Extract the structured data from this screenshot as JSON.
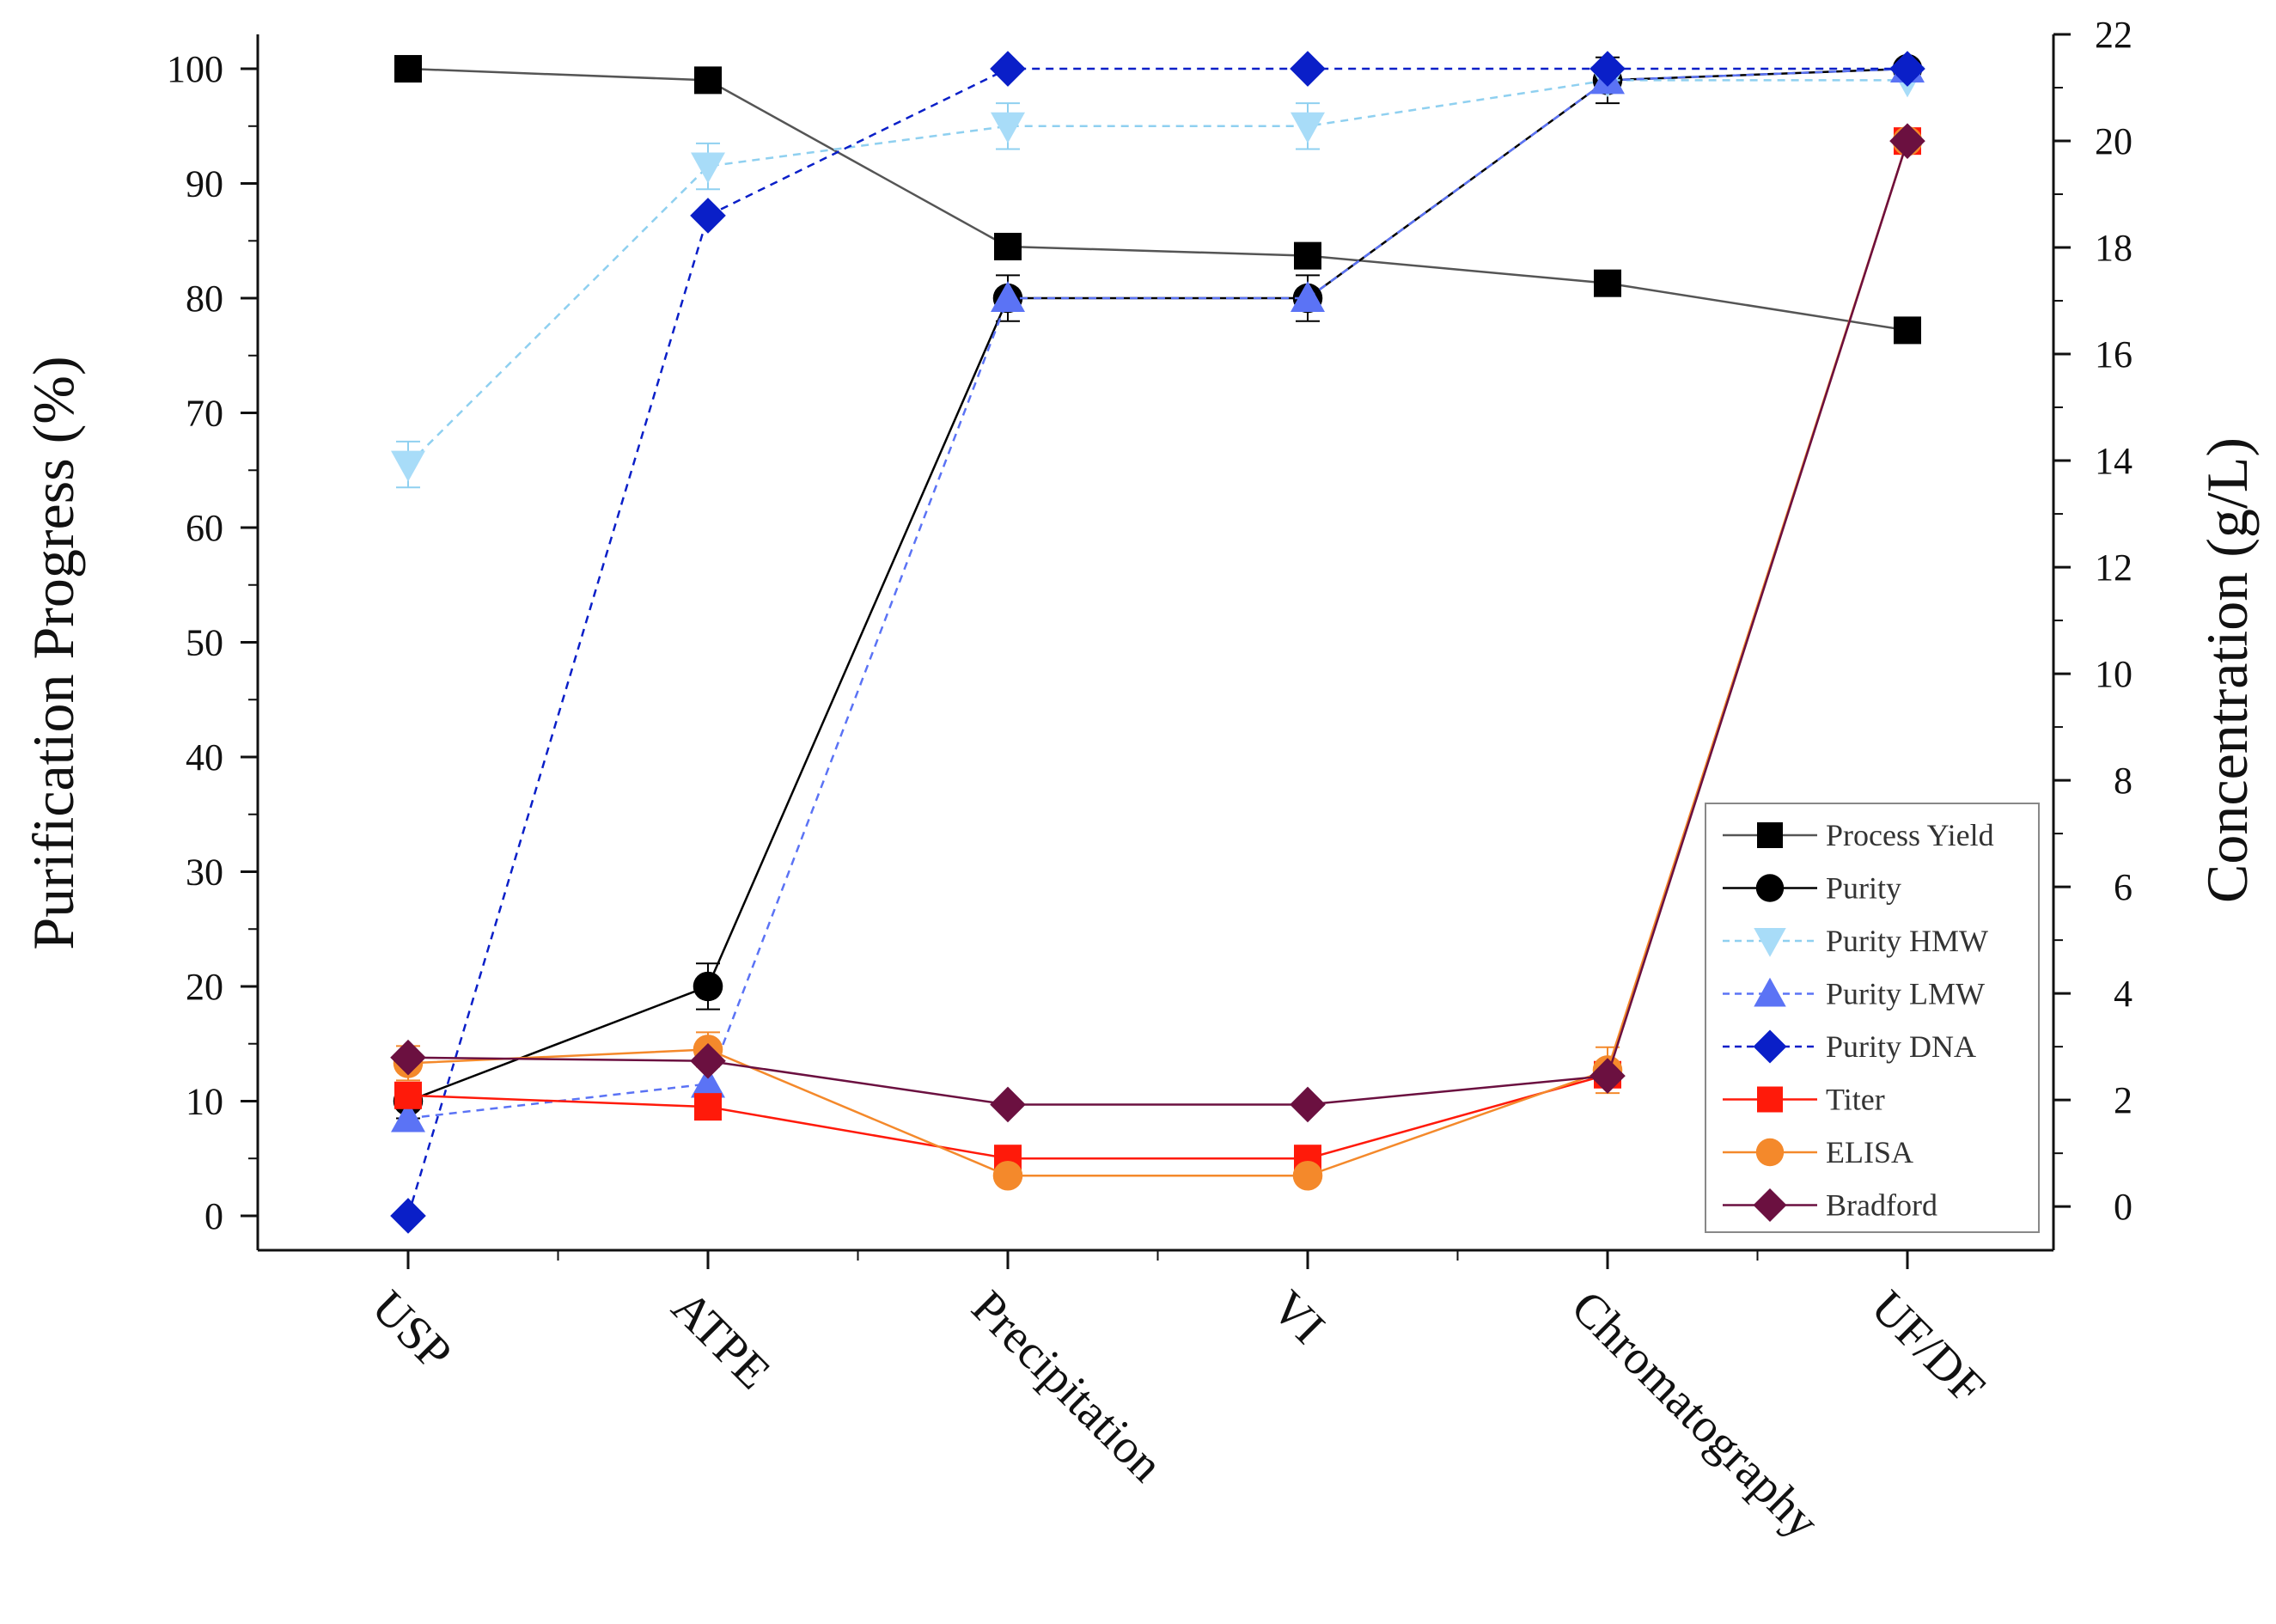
{
  "chart_data": {
    "type": "line",
    "categories": [
      "USP",
      "ATPE",
      "Precipitation",
      "VI",
      "Chromatography",
      "UF/DF"
    ],
    "ylabel_left": "Purification Progress (%)",
    "ylabel_right": "Concentration (g/L)",
    "ylim_left": [
      -3,
      103
    ],
    "yticks_left": [
      0,
      10,
      20,
      30,
      40,
      50,
      60,
      70,
      80,
      90,
      100
    ],
    "ylim_right": [
      -0.82,
      22
    ],
    "yticks_right": [
      0,
      2,
      4,
      6,
      8,
      10,
      12,
      14,
      16,
      18,
      20,
      22
    ],
    "legend_position": "bottom-right",
    "series": [
      {
        "name": "Process Yield",
        "axis": "left",
        "values": [
          100,
          99,
          84.5,
          83.7,
          81.3,
          77.2
        ],
        "color": "#000000",
        "marker": "square",
        "dash": "solid",
        "line_color": "#555555"
      },
      {
        "name": "Purity",
        "axis": "left",
        "values": [
          10,
          20,
          80,
          80,
          99,
          100
        ],
        "errors": [
          1.5,
          2,
          2,
          2,
          2,
          0
        ],
        "color": "#000000",
        "marker": "circle",
        "dash": "solid",
        "line_color": "#000000"
      },
      {
        "name": "Purity HMW",
        "axis": "left",
        "values": [
          65.5,
          91.5,
          95,
          95,
          99,
          99
        ],
        "errors": [
          2,
          2,
          2,
          2,
          0,
          0
        ],
        "color": "#a8dcf8",
        "marker": "triangle-down",
        "dash": "dashed",
        "line_color": "#8fd0f0"
      },
      {
        "name": "Purity LMW",
        "axis": "left",
        "values": [
          8.5,
          11.5,
          80,
          80,
          99,
          100
        ],
        "color": "#5b73f5",
        "marker": "triangle-up",
        "dash": "dashed",
        "line_color": "#5b73f5"
      },
      {
        "name": "Purity DNA",
        "axis": "left",
        "values": [
          0,
          87.2,
          100,
          100,
          100,
          100
        ],
        "color": "#0a1fc8",
        "marker": "diamond",
        "dash": "dashed",
        "line_color": "#0a1fc8"
      },
      {
        "name": "Titer",
        "axis": "left",
        "values": [
          10.5,
          9.5,
          5,
          5,
          12.3,
          93.7
        ],
        "color": "#ff1a0a",
        "marker": "square",
        "dash": "solid",
        "line_color": "#ff1a0a"
      },
      {
        "name": "ELISA",
        "axis": "left",
        "values": [
          13.3,
          14.5,
          3.5,
          3.5,
          12.7,
          93.7
        ],
        "errors": [
          1.5,
          1.5,
          0,
          0,
          2,
          0
        ],
        "color": "#f4892b",
        "marker": "circle",
        "dash": "solid",
        "line_color": "#f4892b"
      },
      {
        "name": "Bradford",
        "axis": "left",
        "values": [
          13.8,
          13.5,
          9.7,
          9.7,
          12.2,
          93.7
        ],
        "color": "#6b1040",
        "marker": "diamond",
        "dash": "solid",
        "line_color": "#6b1040"
      }
    ]
  }
}
